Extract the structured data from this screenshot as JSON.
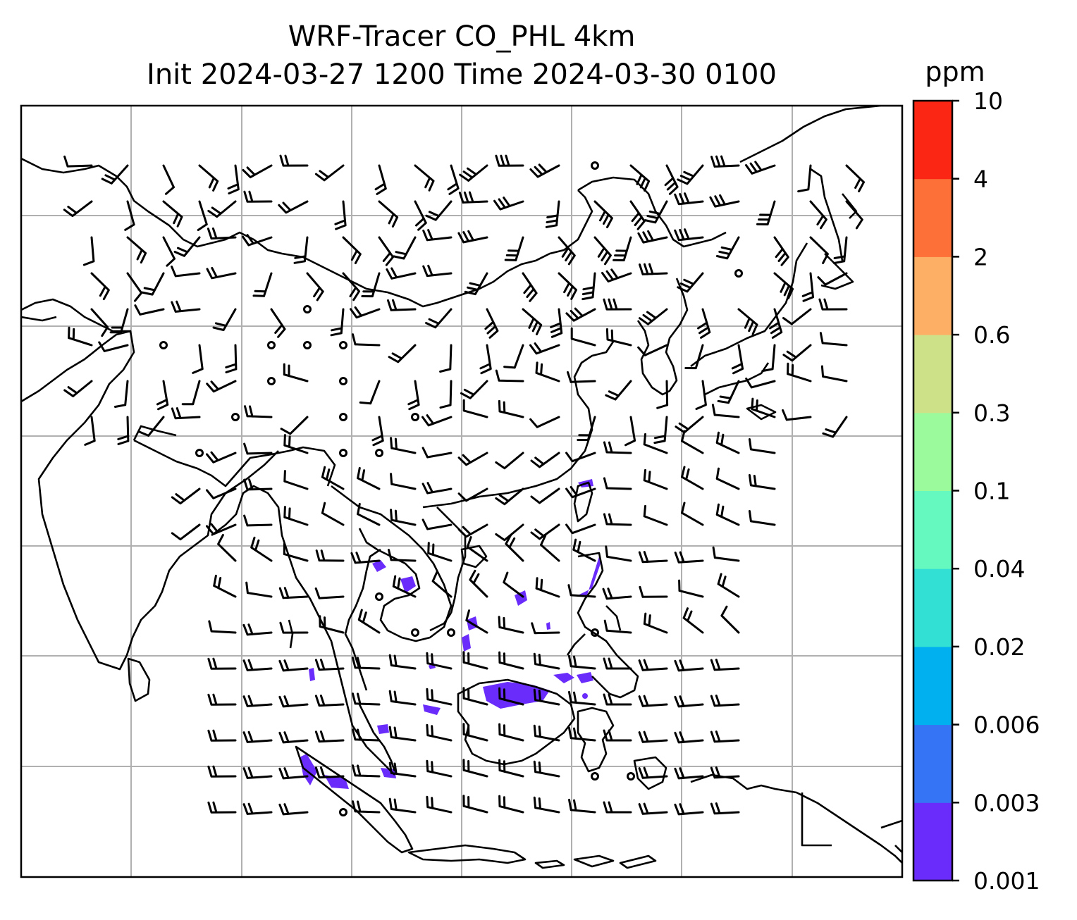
{
  "title": {
    "line1": "WRF-Tracer CO_PHL 4km",
    "line2": "Init 2024-03-27 1200 Time 2024-03-30 0100"
  },
  "colorbar": {
    "unit": "ppm",
    "levels": [
      "0.001",
      "0.003",
      "0.006",
      "0.02",
      "0.04",
      "0.1",
      "0.3",
      "0.6",
      "2",
      "4",
      "10"
    ],
    "colors": [
      "#6a2cfa",
      "#3575f5",
      "#00b0ef",
      "#33e0d4",
      "#66f9bf",
      "#9bfa9b",
      "#cde189",
      "#fdb065",
      "#fd7038",
      "#fb2714"
    ]
  },
  "map": {
    "gridlines": true,
    "coastline_color": "#000000",
    "grid_color": "#b0b0b0",
    "tracer_color": "#6a2cfa"
  }
}
